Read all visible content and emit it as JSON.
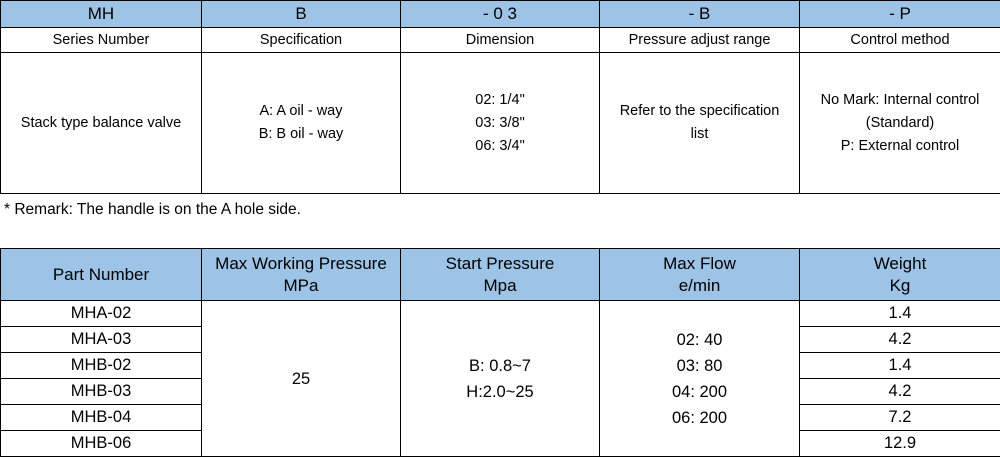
{
  "model_code": {
    "codes": [
      "MH",
      "B",
      "- 0 3",
      "- B",
      "- P"
    ],
    "headers": [
      "Series Number",
      "Specification",
      "Dimension",
      "Pressure adjust range",
      "Control method"
    ],
    "descriptions": [
      [
        "Stack type balance valve"
      ],
      [
        "A: A oil - way",
        "B: B oil - way"
      ],
      [
        "02: 1/4\"",
        "03: 3/8\"",
        "06: 3/4\""
      ],
      [
        "Refer to the specification",
        "list"
      ],
      [
        "No Mark: Internal control",
        "(Standard)",
        "P: External control"
      ]
    ]
  },
  "remark": "* Remark:  The handle is on the A hole side.",
  "spec_table": {
    "headers": [
      [
        "Part Number"
      ],
      [
        "Max Working Pressure",
        "MPa"
      ],
      [
        "Start Pressure",
        "Mpa"
      ],
      [
        "Max Flow",
        "e/min"
      ],
      [
        "Weight",
        "Kg"
      ]
    ],
    "part_numbers": [
      "MHA-02",
      "MHA-03",
      "MHB-02",
      "MHB-03",
      "MHB-04",
      "MHB-06"
    ],
    "max_working_pressure": "25",
    "start_pressure": [
      "B: 0.8~7",
      "H:2.0~25"
    ],
    "max_flow": [
      "02: 40",
      "03: 80",
      "04: 200",
      "06: 200"
    ],
    "weights": [
      "1.4",
      "4.2",
      "1.4",
      "4.2",
      "7.2",
      "12.9"
    ]
  }
}
